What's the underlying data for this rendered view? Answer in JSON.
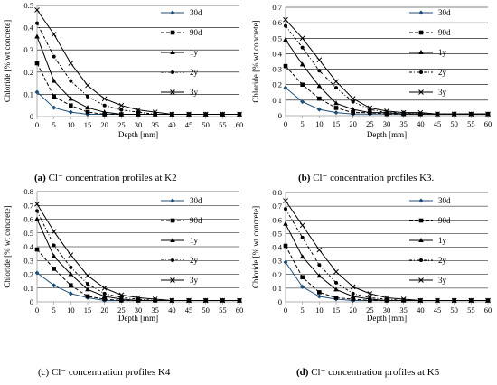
{
  "figure": {
    "captions": [
      {
        "letter": "(a)",
        "text": "Cl⁻ concentration profiles at K2"
      },
      {
        "letter": "(b)",
        "text": "Cl⁻ concentration profiles K3."
      },
      {
        "letter": "(c)",
        "text": "Cl⁻ concentration profiles K4"
      },
      {
        "letter": "(d)",
        "text": "Cl⁻ concentration profiles at K5"
      }
    ]
  },
  "chart_data": [
    {
      "type": "line",
      "title": "",
      "xlabel": "Depth [mm]",
      "ylabel": "Chloride [% wt concrete]",
      "x": [
        0,
        5,
        10,
        15,
        20,
        25,
        30,
        35,
        40,
        45,
        50,
        55,
        60
      ],
      "xticks": [
        "0",
        "5",
        "10",
        "15",
        "20",
        "25",
        "30",
        "35",
        "40",
        "45",
        "50",
        "55",
        "60"
      ],
      "ylim": [
        0,
        0.5
      ],
      "yticks": [
        "0",
        "0.1",
        "0.2",
        "0.3",
        "0.4",
        "0.5"
      ],
      "grid": "horizontal",
      "legend_position": "right",
      "series": [
        {
          "name": "30d",
          "values": [
            0.11,
            0.04,
            0.02,
            0.01,
            0.01,
            0.01,
            0.01,
            0.01,
            0.01,
            0.01,
            0.01,
            0.01,
            0.01
          ]
        },
        {
          "name": "90d",
          "values": [
            0.24,
            0.09,
            0.05,
            0.02,
            0.01,
            0.01,
            0.01,
            0.01,
            0.01,
            0.01,
            0.01,
            0.01,
            0.01
          ]
        },
        {
          "name": "1y",
          "values": [
            0.36,
            0.16,
            0.08,
            0.04,
            0.02,
            0.01,
            0.01,
            0.01,
            0.01,
            0.01,
            0.01,
            0.01,
            0.01
          ]
        },
        {
          "name": "2y",
          "values": [
            0.42,
            0.27,
            0.16,
            0.09,
            0.05,
            0.03,
            0.02,
            0.01,
            0.01,
            0.01,
            0.01,
            0.01,
            0.01
          ]
        },
        {
          "name": "3y",
          "values": [
            0.48,
            0.37,
            0.24,
            0.14,
            0.08,
            0.05,
            0.03,
            0.02,
            0.01,
            0.01,
            0.01,
            0.01,
            0.01
          ]
        }
      ]
    },
    {
      "type": "line",
      "title": "",
      "xlabel": "Depth [mm]",
      "ylabel": "Chloride [% wt concrete]",
      "x": [
        0,
        5,
        10,
        15,
        20,
        25,
        30,
        35,
        40,
        45,
        50,
        55,
        60
      ],
      "xticks": [
        "0",
        "5",
        "10",
        "15",
        "20",
        "25",
        "30",
        "35",
        "40",
        "45",
        "50",
        "55",
        "60"
      ],
      "ylim": [
        0,
        0.7
      ],
      "yticks": [
        "0",
        "0.1",
        "0.2",
        "0.3",
        "0.4",
        "0.5",
        "0.6",
        "0.7"
      ],
      "grid": "horizontal",
      "legend_position": "right",
      "series": [
        {
          "name": "30d",
          "values": [
            0.18,
            0.09,
            0.04,
            0.02,
            0.01,
            0.01,
            0.01,
            0.01,
            0.01,
            0.01,
            0.01,
            0.01,
            0.01
          ]
        },
        {
          "name": "90d",
          "values": [
            0.32,
            0.2,
            0.11,
            0.05,
            0.02,
            0.02,
            0.01,
            0.01,
            0.01,
            0.01,
            0.01,
            0.01,
            0.01
          ]
        },
        {
          "name": "1y",
          "values": [
            0.49,
            0.33,
            0.19,
            0.08,
            0.04,
            0.02,
            0.02,
            0.01,
            0.01,
            0.01,
            0.01,
            0.01,
            0.01
          ]
        },
        {
          "name": "2y",
          "values": [
            0.58,
            0.44,
            0.29,
            0.18,
            0.09,
            0.04,
            0.02,
            0.02,
            0.01,
            0.01,
            0.01,
            0.01,
            0.01
          ]
        },
        {
          "name": "3y",
          "values": [
            0.62,
            0.5,
            0.36,
            0.22,
            0.11,
            0.05,
            0.03,
            0.02,
            0.02,
            0.01,
            0.01,
            0.01,
            0.01
          ]
        }
      ]
    },
    {
      "type": "line",
      "title": "",
      "xlabel": "Depth [mm]",
      "ylabel": "Chloride [% wt concrete]",
      "x": [
        0,
        5,
        10,
        15,
        20,
        25,
        30,
        35,
        40,
        45,
        50,
        55,
        60
      ],
      "xticks": [
        "0",
        "5",
        "10",
        "15",
        "20",
        "25",
        "30",
        "35",
        "40",
        "45",
        "50",
        "55",
        "60"
      ],
      "ylim": [
        0,
        0.8
      ],
      "yticks": [
        "0",
        "0.1",
        "0.2",
        "0.3",
        "0.4",
        "0.5",
        "0.6",
        "0.7",
        "0.8"
      ],
      "grid": "horizontal",
      "legend_position": "right",
      "series": [
        {
          "name": "30d",
          "values": [
            0.21,
            0.12,
            0.06,
            0.03,
            0.01,
            0.01,
            0.01,
            0.01,
            0.01,
            0.01,
            0.01,
            0.01,
            0.01
          ]
        },
        {
          "name": "90d",
          "values": [
            0.38,
            0.24,
            0.12,
            0.04,
            0.02,
            0.01,
            0.01,
            0.01,
            0.01,
            0.01,
            0.01,
            0.01,
            0.01
          ]
        },
        {
          "name": "1y",
          "values": [
            0.6,
            0.33,
            0.2,
            0.09,
            0.04,
            0.02,
            0.01,
            0.01,
            0.01,
            0.01,
            0.01,
            0.01,
            0.01
          ]
        },
        {
          "name": "2y",
          "values": [
            0.66,
            0.41,
            0.25,
            0.13,
            0.06,
            0.03,
            0.02,
            0.01,
            0.01,
            0.01,
            0.01,
            0.01,
            0.01
          ]
        },
        {
          "name": "3y",
          "values": [
            0.71,
            0.51,
            0.34,
            0.19,
            0.1,
            0.05,
            0.03,
            0.02,
            0.01,
            0.01,
            0.01,
            0.01,
            0.01
          ]
        }
      ]
    },
    {
      "type": "line",
      "title": "",
      "xlabel": "Depth [mm]",
      "ylabel": "Chloride [% wt concrete]",
      "x": [
        0,
        5,
        10,
        15,
        20,
        25,
        30,
        35,
        40,
        45,
        50,
        55,
        60
      ],
      "xticks": [
        "0",
        "5",
        "10",
        "15",
        "20",
        "25",
        "30",
        "35",
        "40",
        "45",
        "50",
        "55",
        "60"
      ],
      "ylim": [
        0,
        0.8
      ],
      "yticks": [
        "0",
        "0.1",
        "0.2",
        "0.3",
        "0.4",
        "0.5",
        "0.6",
        "0.7",
        "0.8"
      ],
      "grid": "horizontal",
      "legend_position": "right",
      "series": [
        {
          "name": "30d",
          "values": [
            0.29,
            0.11,
            0.04,
            0.02,
            0.01,
            0.01,
            0.01,
            0.01,
            0.01,
            0.01,
            0.01,
            0.01,
            0.01
          ]
        },
        {
          "name": "90d",
          "values": [
            0.41,
            0.18,
            0.07,
            0.03,
            0.02,
            0.01,
            0.01,
            0.01,
            0.01,
            0.01,
            0.01,
            0.01,
            0.01
          ]
        },
        {
          "name": "1y",
          "values": [
            0.57,
            0.33,
            0.19,
            0.09,
            0.04,
            0.02,
            0.01,
            0.01,
            0.01,
            0.01,
            0.01,
            0.01,
            0.01
          ]
        },
        {
          "name": "2y",
          "values": [
            0.68,
            0.47,
            0.27,
            0.14,
            0.06,
            0.03,
            0.02,
            0.01,
            0.01,
            0.01,
            0.01,
            0.01,
            0.01
          ]
        },
        {
          "name": "3y",
          "values": [
            0.74,
            0.56,
            0.38,
            0.22,
            0.11,
            0.06,
            0.03,
            0.02,
            0.01,
            0.01,
            0.01,
            0.01,
            0.01
          ]
        }
      ]
    }
  ],
  "style": {
    "line_color": "#000000",
    "first_series_color": "#1f4e79",
    "grid_color": "#000000",
    "axis_color": "#999999",
    "background": "#ffffff"
  },
  "markers": [
    "diamond",
    "square",
    "triangle",
    "circle",
    "x-cross"
  ],
  "dashes": [
    "solid",
    "dashed",
    "solid",
    "dotted-dashed",
    "solid"
  ]
}
